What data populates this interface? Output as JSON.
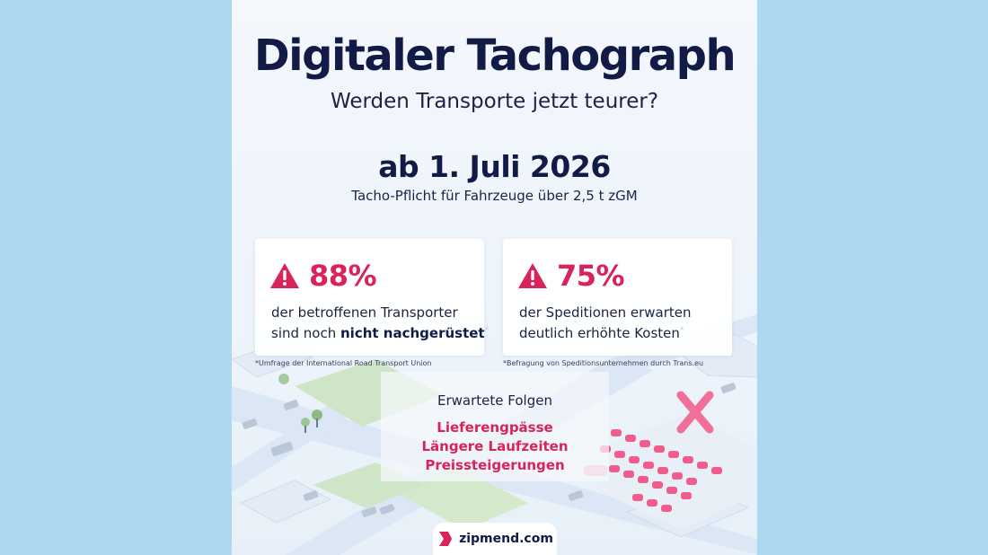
{
  "header": {
    "title": "Digitaler Tachograph",
    "subtitle": "Werden Transporte jetzt teurer?"
  },
  "deadline": {
    "date": "ab 1. Juli 2026",
    "requirement": "Tacho-Pflicht für Fahrzeuge über 2,5 t zGM"
  },
  "stats": [
    {
      "value": "88%",
      "line1": "der betroffenen Transporter",
      "line2_prefix": "sind noch ",
      "line2_bold": "nicht nachgerüstet",
      "marker": "*",
      "source": "*Umfrage der International Road Transport Union"
    },
    {
      "value": "75%",
      "line1": "der Speditionen erwarten",
      "line2_prefix": "deutlich erhöhte Kosten",
      "marker": "*",
      "source": "*Befragung von Speditionsunternehmen durch Trans.eu"
    }
  ],
  "effects": {
    "title": "Erwartete Folgen",
    "items": [
      "Lieferengpässe",
      "Längere Laufzeiten",
      "Preissteigerungen"
    ]
  },
  "brand": {
    "name": "zipmend.com"
  },
  "icons": {
    "warning": "warning-triangle-icon",
    "brand_mark": "zipmend-logo-icon"
  },
  "colors": {
    "outer_background": "#acd8f1",
    "title": "#121b45",
    "accent": "#d8245a"
  }
}
